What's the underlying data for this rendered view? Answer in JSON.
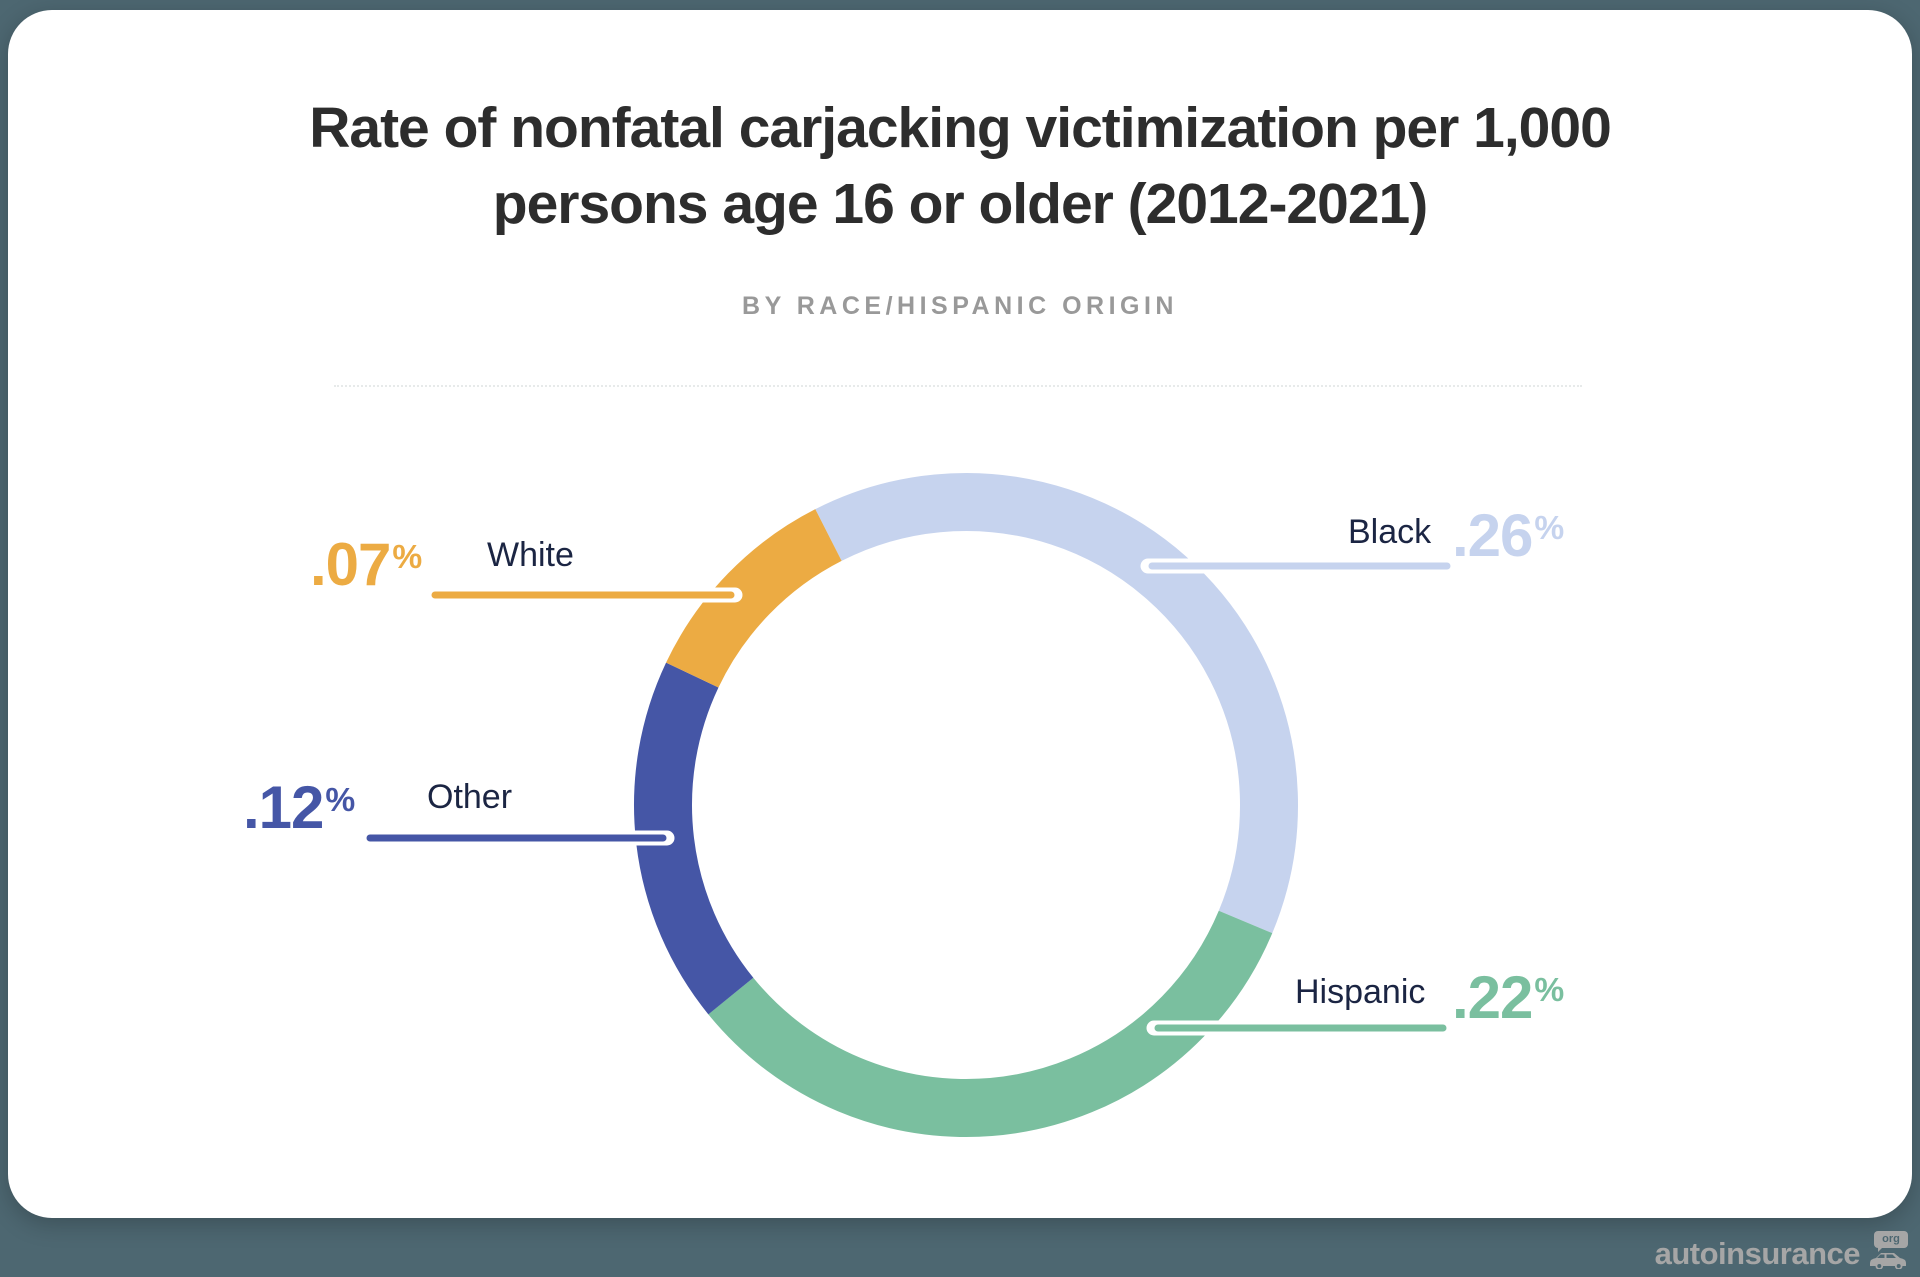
{
  "page": {
    "background_color": "#4d6771",
    "card_color": "#ffffff"
  },
  "header": {
    "title_line1": "Rate of nonfatal carjacking victimization per 1,000",
    "title_line2": "persons age 16 or older (2012-2021)",
    "subtitle": "BY RACE/HISPANIC ORIGIN"
  },
  "chart_data": {
    "type": "pie",
    "donut": true,
    "title": "Rate of nonfatal carjacking victimization per 1,000 persons age 16 or older (2012-2021)",
    "subtitle": "BY RACE/HISPANIC ORIGIN",
    "start_angle_deg": -27,
    "legend_position": "callouts",
    "percent_sign": "%",
    "label_text_color": "#1b2543",
    "series": [
      {
        "name": "Black",
        "value": 0.26,
        "display": ".26",
        "color": "#c6d3ee"
      },
      {
        "name": "Hispanic",
        "value": 0.22,
        "display": ".22",
        "color": "#7abf9f"
      },
      {
        "name": "Other",
        "value": 0.12,
        "display": ".12",
        "color": "#4556a6"
      },
      {
        "name": "White",
        "value": 0.07,
        "display": ".07",
        "color": "#ecab43"
      }
    ]
  },
  "watermark": {
    "brand": "autoinsurance",
    "bubble": "org"
  }
}
